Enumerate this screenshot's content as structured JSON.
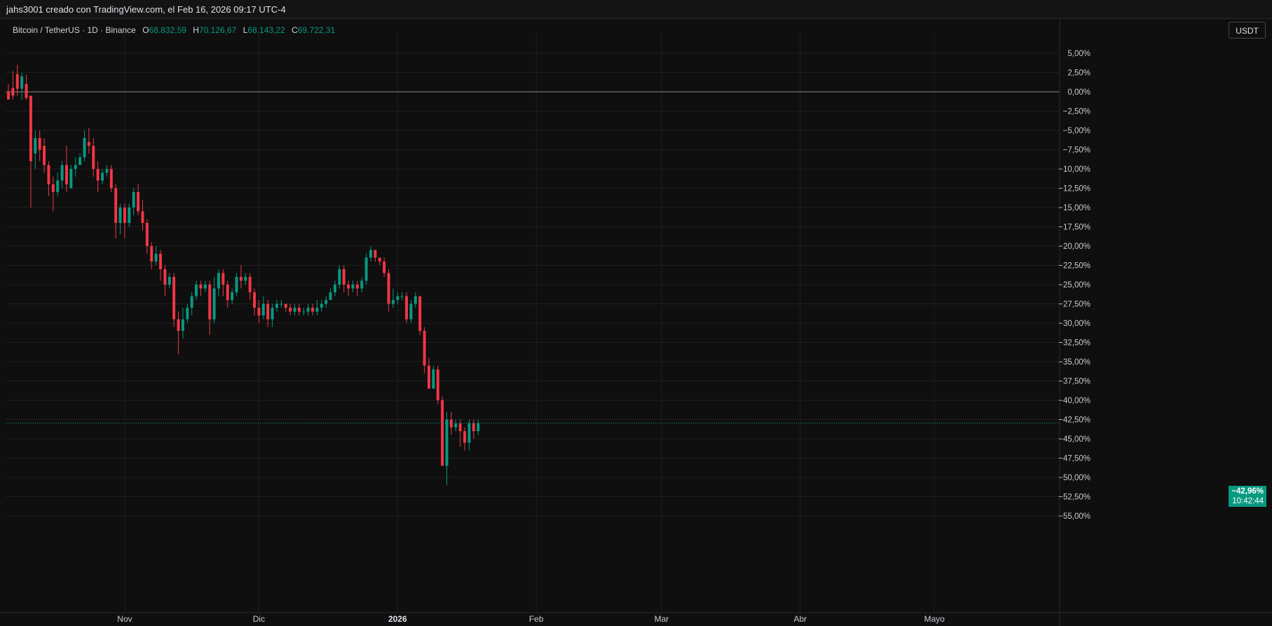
{
  "header": {
    "watermark": "jahs3001 creado con TradingView.com, el Feb 16, 2026 09:17 UTC-4"
  },
  "legend": {
    "symbol": "Bitcoin / TetherUS · 1D · Binance",
    "open_key": "O",
    "open": "68.832,59",
    "high_key": "H",
    "high": "70.126,67",
    "low_key": "L",
    "low": "68.143,22",
    "close_key": "C",
    "close": "69.722,31"
  },
  "toolbar": {
    "currency_label": "USDT"
  },
  "price_tag": {
    "percent": "−42,96%",
    "countdown": "10:42:44"
  },
  "colors": {
    "up": "#089981",
    "down": "#f23645",
    "background": "#0f0f0f",
    "grid": "#1f1f1f",
    "baseline": "#8a8a8a"
  },
  "chart_data": {
    "type": "candlestick",
    "title": "Bitcoin / TetherUS · 1D · Binance",
    "y_scale": "percent",
    "ylim": [
      -56.5,
      6.5
    ],
    "y_ticks": [
      5,
      2.5,
      0,
      -2.5,
      -5,
      -7.5,
      -10,
      -12.5,
      -15,
      -17.5,
      -20,
      -22.5,
      -25,
      -27.5,
      -30,
      -32.5,
      -35,
      -37.5,
      -40,
      -42.5,
      -45,
      -47.5,
      -50,
      -52.5,
      -55
    ],
    "y_tick_labels": [
      "5,00%",
      "2,50%",
      "0,00%",
      "−2,50%",
      "−5,00%",
      "−7,50%",
      "−10,00%",
      "−12,50%",
      "−15,00%",
      "−17,50%",
      "−20,00%",
      "−22,50%",
      "−25,00%",
      "−27,50%",
      "−30,00%",
      "−32,50%",
      "−35,00%",
      "−37,50%",
      "−40,00%",
      "−42,50%",
      "−45,00%",
      "−47,50%",
      "−50,00%",
      "−52,50%",
      "−55,00%"
    ],
    "x_labels": [
      {
        "label": "Nov",
        "bold": false,
        "date": "2025-11-01"
      },
      {
        "label": "Dic",
        "bold": false,
        "date": "2025-12-01"
      },
      {
        "label": "2026",
        "bold": true,
        "date": "2026-01-01"
      },
      {
        "label": "Feb",
        "bold": false,
        "date": "2026-02-01"
      },
      {
        "label": "Mar",
        "bold": false,
        "date": "2026-03-01"
      },
      {
        "label": "Abr",
        "bold": false,
        "date": "2026-04-01"
      },
      {
        "label": "Mayo",
        "bold": false,
        "date": "2026-05-01"
      }
    ],
    "first_date": "2025-10-06",
    "x_end_date": "2026-05-29",
    "baseline": 0,
    "last_value": -42.96,
    "candles": [
      [
        0,
        -1,
        1,
        -1,
        0.5
      ],
      [
        0.5,
        -0.5,
        2.7,
        -1,
        2.3
      ],
      [
        2.3,
        0.4,
        3.5,
        -0.5,
        0.4
      ],
      [
        0.4,
        2,
        2.5,
        -1,
        -0.5
      ],
      [
        1,
        -0.8,
        2.2,
        -1,
        -0.5
      ],
      [
        -0.5,
        -9,
        -1,
        -15,
        -8.5
      ],
      [
        -8,
        -6,
        -5,
        -10,
        -9
      ],
      [
        -6,
        -7.5,
        -5,
        -9,
        -9.5
      ],
      [
        -7,
        -9.5,
        -6,
        -10.5,
        -9
      ],
      [
        -9.5,
        -12,
        -9,
        -13.5,
        -10.5
      ],
      [
        -12,
        -13,
        -11,
        -15.5,
        -14
      ],
      [
        -13,
        -11.5,
        -10.5,
        -13.5,
        -11.5
      ],
      [
        -11.5,
        -9.5,
        -9,
        -12.5,
        -11
      ],
      [
        -9.5,
        -12,
        -7,
        -13,
        -11.5
      ],
      [
        -12.5,
        -10,
        -9.5,
        -12.5,
        -12.5
      ],
      [
        -10,
        -9.5,
        -8.5,
        -11,
        -9.5
      ],
      [
        -9.5,
        -8.5,
        -8,
        -9.5,
        -9.5
      ],
      [
        -8.5,
        -6,
        -5,
        -9,
        -6.5
      ],
      [
        -6.5,
        -7,
        -4.7,
        -8,
        -5.5
      ],
      [
        -7,
        -10,
        -6,
        -11,
        -9
      ],
      [
        -10,
        -11.5,
        -9,
        -13,
        -11
      ],
      [
        -11.5,
        -10.5,
        -10,
        -12,
        -10.5
      ],
      [
        -10.5,
        -10,
        -9.5,
        -11,
        -10.5
      ],
      [
        -10,
        -12.5,
        -9.5,
        -13,
        -10.5
      ],
      [
        -12.5,
        -17,
        -12,
        -19,
        -14.5
      ],
      [
        -17,
        -15,
        -14.5,
        -18.5,
        -15.5
      ],
      [
        -15,
        -17,
        -14.5,
        -19,
        -16.5
      ],
      [
        -17,
        -15,
        -14.5,
        -17.5,
        -16
      ],
      [
        -15,
        -13,
        -12.5,
        -16,
        -14.5
      ],
      [
        -13,
        -15.5,
        -12,
        -16,
        -14.5
      ],
      [
        -15.5,
        -17,
        -14,
        -18,
        -16.5
      ],
      [
        -17,
        -20,
        -16.5,
        -21,
        -18.5
      ],
      [
        -20,
        -22,
        -19.5,
        -23,
        -21.5
      ],
      [
        -22,
        -21,
        -20,
        -22.5,
        -21.5
      ],
      [
        -21,
        -23,
        -20.5,
        -24.5,
        -22.5
      ],
      [
        -23,
        -25,
        -22.5,
        -26.5,
        -24.5
      ],
      [
        -25,
        -24,
        -23.5,
        -25.5,
        -24.5
      ],
      [
        -24,
        -29.5,
        -23.5,
        -30.5,
        -27.5
      ],
      [
        -29.5,
        -31,
        -28.5,
        -34,
        -30
      ],
      [
        -31,
        -29.5,
        -28,
        -32,
        -30.5
      ],
      [
        -29.5,
        -28,
        -27.5,
        -30,
        -29
      ],
      [
        -28,
        -26.5,
        -26,
        -29,
        -27.5
      ],
      [
        -26.5,
        -25,
        -24.5,
        -27,
        -26
      ],
      [
        -25,
        -25.5,
        -24.5,
        -26.5,
        -25
      ],
      [
        -25.5,
        -25,
        -24.5,
        -26,
        -25.5
      ],
      [
        -25,
        -29.5,
        -24.5,
        -31.5,
        -27.5
      ],
      [
        -29.5,
        -25.5,
        -24,
        -30,
        -27.5
      ],
      [
        -25.5,
        -23.5,
        -23,
        -26.5,
        -24.5
      ],
      [
        -23.5,
        -25,
        -23,
        -26.5,
        -24.5
      ],
      [
        -25,
        -27,
        -24.5,
        -28,
        -26
      ],
      [
        -27,
        -26,
        -25.5,
        -27.5,
        -26.5
      ],
      [
        -26,
        -24,
        -23.5,
        -26.5,
        -25
      ],
      [
        -24,
        -24.5,
        -22.5,
        -25.5,
        -24
      ],
      [
        -24.5,
        -24,
        -23.5,
        -25,
        -24.5
      ],
      [
        -24,
        -26,
        -23.5,
        -27,
        -25.5
      ],
      [
        -26,
        -28,
        -25.5,
        -29,
        -27.5
      ],
      [
        -28,
        -29,
        -27,
        -30,
        -28.5
      ],
      [
        -29,
        -27.5,
        -26.5,
        -29.5,
        -28
      ],
      [
        -27.5,
        -29.5,
        -27,
        -30.5,
        -28.5
      ],
      [
        -29.5,
        -28,
        -27.5,
        -30.5,
        -28.5
      ],
      [
        -28,
        -27.5,
        -27,
        -28.5,
        -28
      ],
      [
        -27.5,
        -27.5,
        -27,
        -28,
        -27.5
      ],
      [
        -27.5,
        -28,
        -27.5,
        -28.5,
        -27.5
      ],
      [
        -28,
        -28.5,
        -27.5,
        -29,
        -28
      ],
      [
        -28.5,
        -28,
        -27.5,
        -29,
        -28.5
      ],
      [
        -28,
        -28.5,
        -27.5,
        -29,
        -28
      ],
      [
        -28.5,
        -28.5,
        -28,
        -29,
        -28.5
      ],
      [
        -28.5,
        -28,
        -27.5,
        -29,
        -28.5
      ],
      [
        -28,
        -28.5,
        -27.5,
        -29,
        -28
      ],
      [
        -28.5,
        -28,
        -27,
        -29,
        -28.5
      ],
      [
        -28,
        -27.5,
        -27,
        -28.5,
        -28
      ],
      [
        -27.5,
        -27,
        -26.5,
        -28,
        -27.5
      ],
      [
        -27,
        -26,
        -25.5,
        -27,
        -26.5
      ],
      [
        -26,
        -25,
        -24.5,
        -26.5,
        -25.5
      ],
      [
        -25,
        -23,
        -22.5,
        -25.5,
        -24
      ],
      [
        -23,
        -25,
        -22.5,
        -26,
        -24.5
      ],
      [
        -25,
        -25.5,
        -24.5,
        -26.5,
        -25
      ],
      [
        -25.5,
        -25,
        -24.5,
        -26,
        -25.5
      ],
      [
        -25,
        -25.5,
        -24.5,
        -26.5,
        -25
      ],
      [
        -25.5,
        -24.5,
        -24,
        -26,
        -25
      ],
      [
        -24.5,
        -21.5,
        -21,
        -25,
        -22.5
      ],
      [
        -21.5,
        -20.5,
        -20,
        -22,
        -21
      ],
      [
        -20.5,
        -21.5,
        -20.5,
        -22,
        -21
      ],
      [
        -21.5,
        -22,
        -21.5,
        -22.5,
        -22
      ],
      [
        -22,
        -23.5,
        -21.5,
        -24,
        -23
      ],
      [
        -23.5,
        -27.5,
        -23,
        -28.5,
        -25.5
      ],
      [
        -27.5,
        -27,
        -25.5,
        -28,
        -27.5
      ],
      [
        -27,
        -26.5,
        -26,
        -27.5,
        -26.5
      ],
      [
        -26.5,
        -26.5,
        -26,
        -27,
        -26.5
      ],
      [
        -26.5,
        -29.5,
        -26,
        -30,
        -28
      ],
      [
        -29.5,
        -27.5,
        -27,
        -30,
        -28.5
      ],
      [
        -27.5,
        -26.5,
        -26,
        -28,
        -27
      ],
      [
        -26.5,
        -31,
        -26.5,
        -31.5,
        -29
      ],
      [
        -31,
        -35.5,
        -30.5,
        -36.5,
        -33
      ],
      [
        -35.5,
        -38.5,
        -34.5,
        -38.5,
        -37
      ],
      [
        -38.5,
        -36,
        -35.5,
        -38.5,
        -37
      ],
      [
        -36,
        -40,
        -35.5,
        -40.5,
        -38
      ],
      [
        -40,
        -48.5,
        -39.5,
        -48.5,
        -44
      ],
      [
        -48.5,
        -42.5,
        -41.5,
        -51,
        -45
      ],
      [
        -42.5,
        -43.5,
        -41.5,
        -44.5,
        -43
      ],
      [
        -43.5,
        -43,
        -42.5,
        -44,
        -43
      ],
      [
        -43,
        -44,
        -42.5,
        -46,
        -43.5
      ],
      [
        -44,
        -45.5,
        -43.5,
        -46.5,
        -44.5
      ],
      [
        -45.5,
        -43,
        -42.5,
        -46.5,
        -44
      ],
      [
        -43,
        -44,
        -42.5,
        -45,
        -43.5
      ],
      [
        -44,
        -43,
        -42.5,
        -44.5,
        -43.2
      ]
    ],
    "candle_fields": [
      "open",
      "close",
      "high",
      "low",
      "unused"
    ]
  }
}
